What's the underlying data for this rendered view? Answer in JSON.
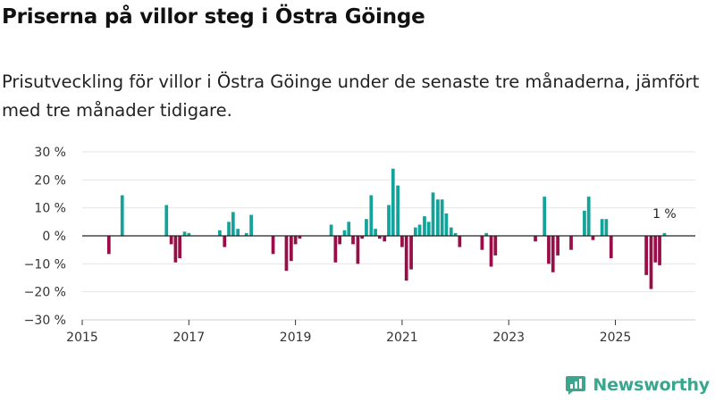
{
  "title": "Priserna på villor steg i Östra Göinge",
  "subtitle": "Prisutveckling för villor i Östra Göinge under de senaste tre månaderna, jämfört med tre månader tidigare.",
  "brand": "Newsworthy",
  "colors": {
    "positive": "#13a39a",
    "negative": "#990d48",
    "grid": "#e6e6e6",
    "axis": "#222222"
  },
  "chart_data": {
    "type": "bar",
    "title": "Priserna på villor steg i Östra Göinge",
    "xlabel": "",
    "ylabel": "",
    "xlim": [
      2015.0,
      2026.5
    ],
    "ylim": [
      -30,
      30
    ],
    "x_ticks": [
      2015,
      2017,
      2019,
      2021,
      2023,
      2025
    ],
    "y_ticks": [
      30,
      20,
      10,
      0,
      -10,
      -20,
      -30
    ],
    "y_tick_labels": [
      "30 %",
      "20 %",
      "10 %",
      "0 %",
      "−10 %",
      "−20 %",
      "−30 %"
    ],
    "bar_width_years": 0.0625,
    "series": [
      {
        "name": "Prisutveckling",
        "unit": "%",
        "points": [
          {
            "x": 2015.5,
            "y": -6.5
          },
          {
            "x": 2015.75,
            "y": 14.5
          },
          {
            "x": 2016.58,
            "y": 11
          },
          {
            "x": 2016.67,
            "y": -3
          },
          {
            "x": 2016.75,
            "y": -9.5
          },
          {
            "x": 2016.83,
            "y": -8
          },
          {
            "x": 2016.92,
            "y": 1.5
          },
          {
            "x": 2017.0,
            "y": 1
          },
          {
            "x": 2017.58,
            "y": 2
          },
          {
            "x": 2017.67,
            "y": -4
          },
          {
            "x": 2017.75,
            "y": 5
          },
          {
            "x": 2017.83,
            "y": 8.5
          },
          {
            "x": 2017.92,
            "y": 2.5
          },
          {
            "x": 2018.08,
            "y": 1
          },
          {
            "x": 2018.17,
            "y": 7.5
          },
          {
            "x": 2018.58,
            "y": -6.5
          },
          {
            "x": 2018.83,
            "y": -12.5
          },
          {
            "x": 2018.92,
            "y": -9
          },
          {
            "x": 2019.0,
            "y": -3
          },
          {
            "x": 2019.08,
            "y": -1
          },
          {
            "x": 2019.67,
            "y": 4
          },
          {
            "x": 2019.75,
            "y": -9.5
          },
          {
            "x": 2019.83,
            "y": -3
          },
          {
            "x": 2019.92,
            "y": 2
          },
          {
            "x": 2020.0,
            "y": 5
          },
          {
            "x": 2020.08,
            "y": -3
          },
          {
            "x": 2020.17,
            "y": -10
          },
          {
            "x": 2020.25,
            "y": -1
          },
          {
            "x": 2020.33,
            "y": 6
          },
          {
            "x": 2020.42,
            "y": 14.5
          },
          {
            "x": 2020.5,
            "y": 2.5
          },
          {
            "x": 2020.58,
            "y": -1
          },
          {
            "x": 2020.67,
            "y": -2
          },
          {
            "x": 2020.75,
            "y": 11
          },
          {
            "x": 2020.83,
            "y": 24
          },
          {
            "x": 2020.92,
            "y": 18
          },
          {
            "x": 2021.0,
            "y": -4
          },
          {
            "x": 2021.08,
            "y": -16
          },
          {
            "x": 2021.17,
            "y": -12
          },
          {
            "x": 2021.25,
            "y": 3
          },
          {
            "x": 2021.33,
            "y": 4
          },
          {
            "x": 2021.42,
            "y": 7
          },
          {
            "x": 2021.5,
            "y": 5
          },
          {
            "x": 2021.58,
            "y": 15.5
          },
          {
            "x": 2021.67,
            "y": 13
          },
          {
            "x": 2021.75,
            "y": 13
          },
          {
            "x": 2021.83,
            "y": 8
          },
          {
            "x": 2021.92,
            "y": 3
          },
          {
            "x": 2022.0,
            "y": 1
          },
          {
            "x": 2022.08,
            "y": -4
          },
          {
            "x": 2022.5,
            "y": -5
          },
          {
            "x": 2022.58,
            "y": 1
          },
          {
            "x": 2022.67,
            "y": -11
          },
          {
            "x": 2022.75,
            "y": -7
          },
          {
            "x": 2023.5,
            "y": -2
          },
          {
            "x": 2023.67,
            "y": 14
          },
          {
            "x": 2023.75,
            "y": -10
          },
          {
            "x": 2023.83,
            "y": -13
          },
          {
            "x": 2023.92,
            "y": -7
          },
          {
            "x": 2024.17,
            "y": -5
          },
          {
            "x": 2024.42,
            "y": 9
          },
          {
            "x": 2024.5,
            "y": 14
          },
          {
            "x": 2024.58,
            "y": -1.5
          },
          {
            "x": 2024.75,
            "y": 6
          },
          {
            "x": 2024.83,
            "y": 6
          },
          {
            "x": 2024.92,
            "y": -8
          },
          {
            "x": 2025.58,
            "y": -14
          },
          {
            "x": 2025.67,
            "y": -19
          },
          {
            "x": 2025.75,
            "y": -9.5
          },
          {
            "x": 2025.83,
            "y": -10.5
          },
          {
            "x": 2025.92,
            "y": 1
          }
        ]
      }
    ],
    "annotations": [
      {
        "x": 2025.92,
        "y": 1,
        "text": "1 %"
      }
    ]
  }
}
